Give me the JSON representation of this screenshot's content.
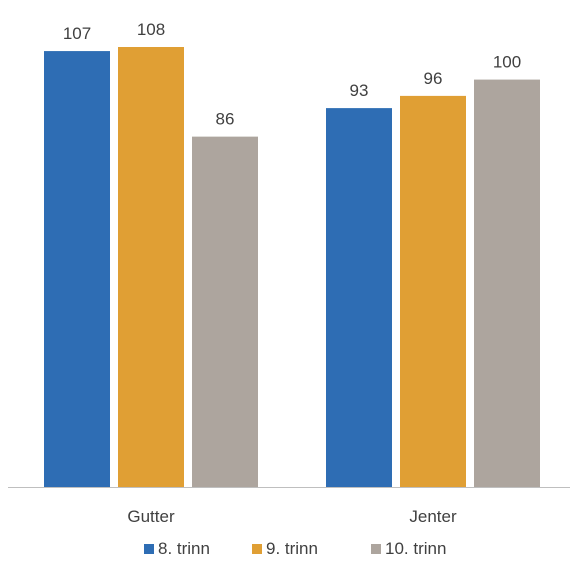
{
  "chart_data": {
    "type": "bar",
    "title": "",
    "xlabel": "",
    "ylabel": "",
    "categories": [
      "Gutter",
      "Jenter"
    ],
    "series": [
      {
        "name": "8. trinn",
        "values": [
          107,
          93
        ],
        "color": "#2E6DB4"
      },
      {
        "name": "9. trinn",
        "values": [
          108,
          96
        ],
        "color": "#E09F34"
      },
      {
        "name": "10. trinn",
        "values": [
          86,
          100
        ],
        "color": "#ADA59E"
      }
    ],
    "ylim": [
      0,
      108
    ],
    "grid": false,
    "legend": "bottom",
    "data_labels": true,
    "axis_color": "#BFBFBF"
  }
}
